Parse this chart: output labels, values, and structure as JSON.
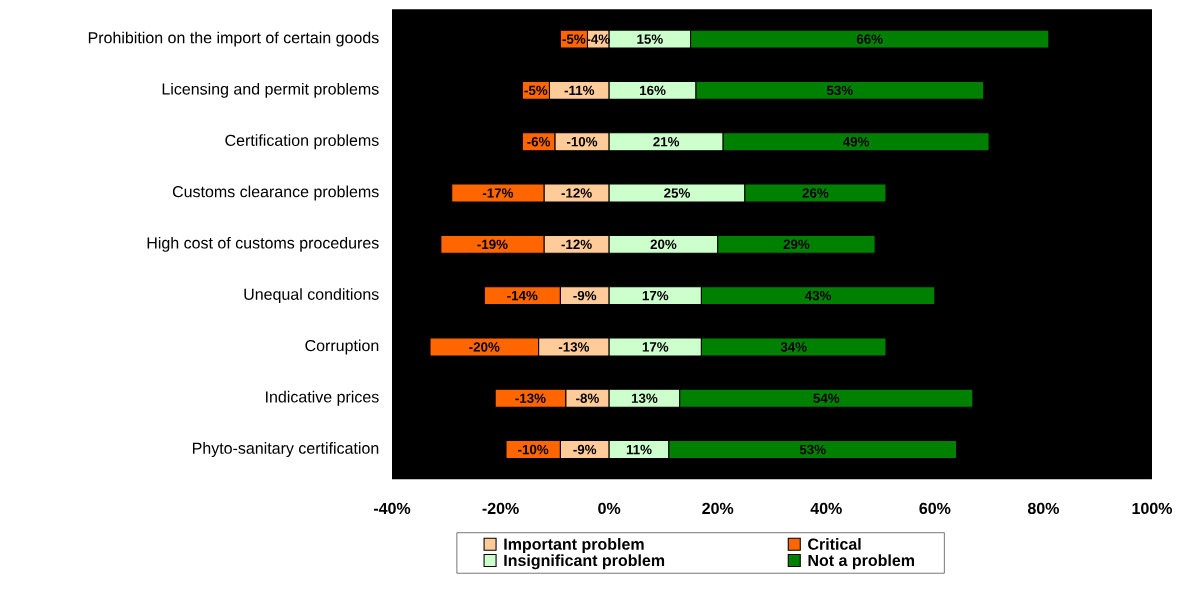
{
  "chart_data": {
    "type": "bar",
    "orientation": "horizontal",
    "stacked": true,
    "categories": [
      "Prohibition on the import of certain goods",
      "Licensing and permit problems",
      "Certification problems",
      "Customs clearance problems",
      "High cost of customs procedures",
      "Unequal conditions",
      "Corruption",
      "Indicative prices",
      "Phyto-sanitary certification"
    ],
    "series": [
      {
        "name": "Important problem",
        "color": "#ffcc99",
        "values": [
          -4,
          -11,
          -10,
          -12,
          -12,
          -9,
          -13,
          -8,
          -9
        ],
        "value_labels": [
          "-4%",
          "-11%",
          "-10%",
          "-12%",
          "-12%",
          "-9%",
          "-13%",
          "-8%",
          "-9%"
        ]
      },
      {
        "name": "Critical",
        "color": "#ff6600",
        "values": [
          -5,
          -5,
          -6,
          -17,
          -19,
          -14,
          -20,
          -13,
          -10
        ],
        "value_labels": [
          "-5%",
          "-5%",
          "-6%",
          "-17%",
          "-19%",
          "-14%",
          "-20%",
          "-13%",
          "-10%"
        ]
      },
      {
        "name": "Insignificant problem",
        "color": "#ccffcc",
        "values": [
          15,
          16,
          21,
          25,
          20,
          17,
          17,
          13,
          11
        ],
        "value_labels": [
          "15%",
          "16%",
          "21%",
          "25%",
          "20%",
          "17%",
          "17%",
          "13%",
          "11%"
        ]
      },
      {
        "name": "Not a problem",
        "color": "#008000",
        "values": [
          66,
          53,
          49,
          26,
          29,
          43,
          34,
          54,
          53
        ],
        "value_labels": [
          "66%",
          "53%",
          "49%",
          "26%",
          "29%",
          "43%",
          "34%",
          "54%",
          "53%"
        ]
      }
    ],
    "xlim": [
      -40,
      100
    ],
    "xticks": [
      {
        "value": -40,
        "label": "-40%"
      },
      {
        "value": -20,
        "label": "-20%"
      },
      {
        "value": 0,
        "label": "0%"
      },
      {
        "value": 20,
        "label": "20%"
      },
      {
        "value": 40,
        "label": "40%"
      },
      {
        "value": 60,
        "label": "60%"
      },
      {
        "value": 80,
        "label": "80%"
      },
      {
        "value": 100,
        "label": "100%"
      }
    ],
    "legend": "bottom"
  }
}
